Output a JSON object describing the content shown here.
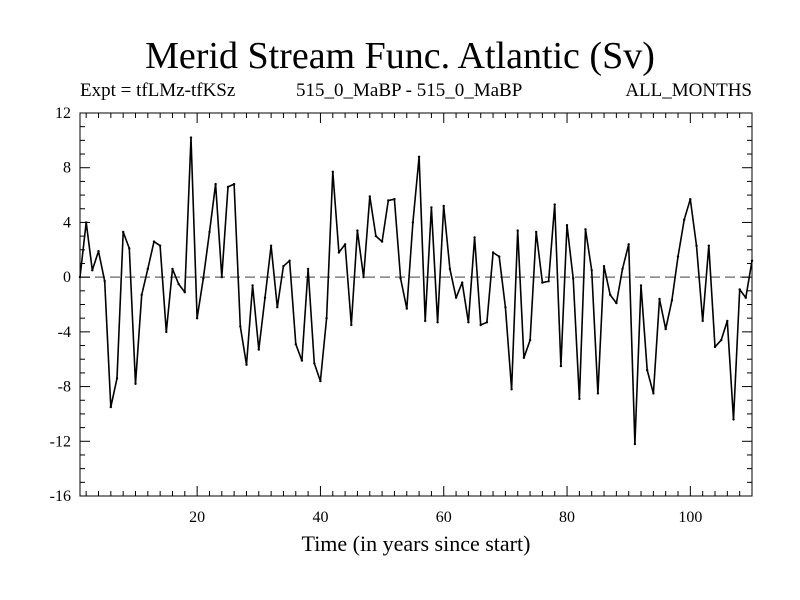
{
  "chart_data": {
    "type": "line",
    "title": "Merid Stream Func. Atlantic (Sv)",
    "subtitle_left": "Expt = tfLMz-tfKSz",
    "subtitle_center": "515_0_MaBP - 515_0_MaBP",
    "subtitle_right": "ALL_MONTHS",
    "xlabel": "Time (in years since start)",
    "ylabel": "",
    "xlim": [
      1,
      110
    ],
    "ylim": [
      -16,
      12
    ],
    "xticks": [
      20,
      40,
      60,
      80,
      100
    ],
    "yticks": [
      12,
      8,
      4,
      0,
      -4,
      -8,
      -12,
      -16
    ],
    "reference_line": 0,
    "series": [
      {
        "name": "Merid Stream Func. Atlantic",
        "x": [
          1,
          2,
          3,
          4,
          5,
          6,
          7,
          8,
          9,
          10,
          11,
          12,
          13,
          14,
          15,
          16,
          17,
          18,
          19,
          20,
          21,
          22,
          23,
          24,
          25,
          26,
          27,
          28,
          29,
          30,
          31,
          32,
          33,
          34,
          35,
          36,
          37,
          38,
          39,
          40,
          41,
          42,
          43,
          44,
          45,
          46,
          47,
          48,
          49,
          50,
          51,
          52,
          53,
          54,
          55,
          56,
          57,
          58,
          59,
          60,
          61,
          62,
          63,
          64,
          65,
          66,
          67,
          68,
          69,
          70,
          71,
          72,
          73,
          74,
          75,
          76,
          77,
          78,
          79,
          80,
          81,
          82,
          83,
          84,
          85,
          86,
          87,
          88,
          89,
          90,
          91,
          92,
          93,
          94,
          95,
          96,
          97,
          98,
          99,
          100,
          101,
          102,
          103,
          104,
          105,
          106,
          107,
          108,
          109,
          110
        ],
        "values": [
          0.0,
          4.0,
          0.5,
          1.9,
          -0.3,
          -9.5,
          -7.4,
          3.3,
          2.1,
          -7.8,
          -1.3,
          0.6,
          2.6,
          2.3,
          -4.0,
          0.6,
          -0.5,
          -1.1,
          10.2,
          -3.0,
          -0.1,
          3.3,
          6.8,
          0.0,
          6.6,
          6.8,
          -3.6,
          -6.4,
          -0.6,
          -5.3,
          -1.5,
          2.3,
          -2.2,
          0.8,
          1.2,
          -4.9,
          -6.1,
          0.6,
          -6.3,
          -7.6,
          -3.0,
          7.7,
          1.8,
          2.4,
          -3.5,
          3.4,
          0.0,
          5.9,
          3.0,
          2.6,
          5.6,
          5.7,
          -0.1,
          -2.3,
          4.0,
          8.8,
          -3.2,
          5.1,
          -3.3,
          5.2,
          0.6,
          -1.5,
          -0.4,
          -3.3,
          2.9,
          -3.5,
          -3.3,
          1.8,
          1.5,
          -2.2,
          -8.2,
          3.4,
          -5.9,
          -4.6,
          3.3,
          -0.4,
          -0.3,
          5.3,
          -6.5,
          3.8,
          -0.1,
          -8.9,
          3.5,
          0.5,
          -8.5,
          0.8,
          -1.3,
          -1.9,
          0.6,
          2.4,
          -12.2,
          -0.6,
          -6.8,
          -8.5,
          -1.6,
          -3.8,
          -1.7,
          1.5,
          4.2,
          5.7,
          2.3,
          -3.2,
          2.3,
          -5.1,
          -4.6,
          -3.2,
          -10.4,
          -0.9,
          -1.5,
          1.2
        ]
      }
    ]
  }
}
